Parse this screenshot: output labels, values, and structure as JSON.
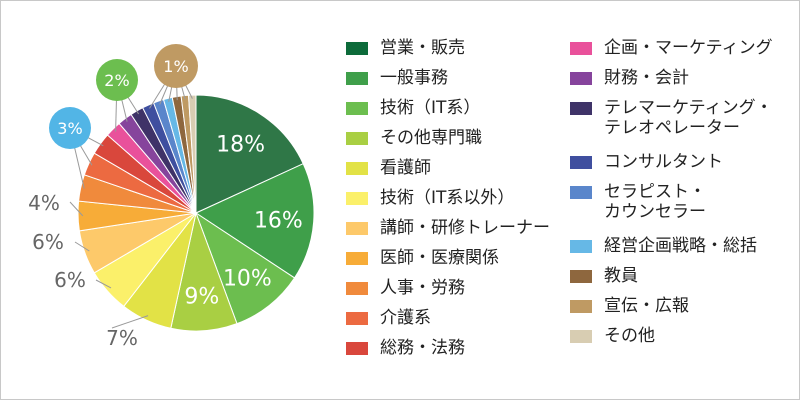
{
  "chart_data": {
    "type": "pie",
    "title": "",
    "slices": [
      {
        "name": "営業・販売",
        "value": 18,
        "color": "#2f7747",
        "label": "18%"
      },
      {
        "name": "一般事務",
        "value": 16,
        "color": "#3f9f4a",
        "label": "16%"
      },
      {
        "name": "技術（IT系）",
        "value": 10,
        "color": "#6cbe4f",
        "label": "10%"
      },
      {
        "name": "その他専門職",
        "value": 9,
        "color": "#a9cf43",
        "label": "9%"
      },
      {
        "name": "看護師",
        "value": 7,
        "color": "#e2e246",
        "label": "7%"
      },
      {
        "name": "技術（IT系以外）",
        "value": 6,
        "color": "#fbf06a",
        "label": "6%"
      },
      {
        "name": "講師・研修トレーナー",
        "value": 6,
        "color": "#fdc96a",
        "label": "6%"
      },
      {
        "name": "医師・医療関係",
        "value": 4,
        "color": "#f7ac38",
        "label": "4%"
      },
      {
        "name": "人事・労務",
        "value": 3.6,
        "color": "#f08a3c",
        "label": ""
      },
      {
        "name": "介護系",
        "value": 3.2,
        "color": "#ec6a41",
        "label": ""
      },
      {
        "name": "総務・法務",
        "value": 3,
        "color": "#d9473c",
        "label": "3%"
      },
      {
        "name": "企画・マーケティング",
        "value": 2.2,
        "color": "#e9519b",
        "label": ""
      },
      {
        "name": "財務・会計",
        "value": 2,
        "color": "#86449c",
        "label": "2%"
      },
      {
        "name": "テレマーケティング・テレオペレーター",
        "value": 1.8,
        "color": "#3f3368",
        "label": ""
      },
      {
        "name": "コンサルタント",
        "value": 1.6,
        "color": "#3f4f9f",
        "label": ""
      },
      {
        "name": "セラピスト・カウンセラー",
        "value": 1.4,
        "color": "#5a86cb",
        "label": ""
      },
      {
        "name": "経営企画戦略・総括",
        "value": 1.2,
        "color": "#66b8e6",
        "label": ""
      },
      {
        "name": "教員",
        "value": 1.2,
        "color": "#8e673e",
        "label": ""
      },
      {
        "name": "宣伝・広報",
        "value": 1,
        "color": "#bf9a63",
        "label": "1%"
      },
      {
        "name": "その他",
        "value": 1,
        "color": "#d8cdb2",
        "label": ""
      }
    ],
    "legend_position": "right",
    "legend_columns": [
      [
        {
          "swatch_color": "#0d6b3a",
          "lines": [
            "営業・販売"
          ]
        },
        {
          "swatch_color": "#3f9f4a",
          "lines": [
            "一般事務"
          ]
        },
        {
          "swatch_color": "#6cbe4f",
          "lines": [
            "技術（IT系）"
          ]
        },
        {
          "swatch_color": "#a9cf43",
          "lines": [
            "その他専門職"
          ]
        },
        {
          "swatch_color": "#e2e246",
          "lines": [
            "看護師"
          ]
        },
        {
          "swatch_color": "#fbf06a",
          "lines": [
            "技術（IT系以外）"
          ]
        },
        {
          "swatch_color": "#fdc96a",
          "lines": [
            "講師・研修トレーナー"
          ]
        },
        {
          "swatch_color": "#f7ac38",
          "lines": [
            "医師・医療関係"
          ]
        },
        {
          "swatch_color": "#f08a3c",
          "lines": [
            "人事・労務"
          ]
        },
        {
          "swatch_color": "#ec6a41",
          "lines": [
            "介護系"
          ]
        },
        {
          "swatch_color": "#d9473c",
          "lines": [
            "総務・法務"
          ]
        }
      ],
      [
        {
          "swatch_color": "#e9519b",
          "lines": [
            "企画・マーケティング"
          ]
        },
        {
          "swatch_color": "#86449c",
          "lines": [
            "財務・会計"
          ]
        },
        {
          "swatch_color": "#3f3368",
          "lines": [
            "テレマーケティング・",
            "テレオペレーター"
          ]
        },
        {
          "swatch_color": "#3f4f9f",
          "lines": [
            "コンサルタント"
          ]
        },
        {
          "swatch_color": "#5a86cb",
          "lines": [
            "セラピスト・",
            "カウンセラー"
          ]
        },
        {
          "swatch_color": "#66b8e6",
          "lines": [
            "経営企画戦略・総括"
          ]
        },
        {
          "swatch_color": "#8e673e",
          "lines": [
            "教員"
          ]
        },
        {
          "swatch_color": "#bf9a63",
          "lines": [
            "宣伝・広報"
          ]
        },
        {
          "swatch_color": "#d8cdb2",
          "lines": [
            "その他"
          ]
        }
      ]
    ]
  }
}
